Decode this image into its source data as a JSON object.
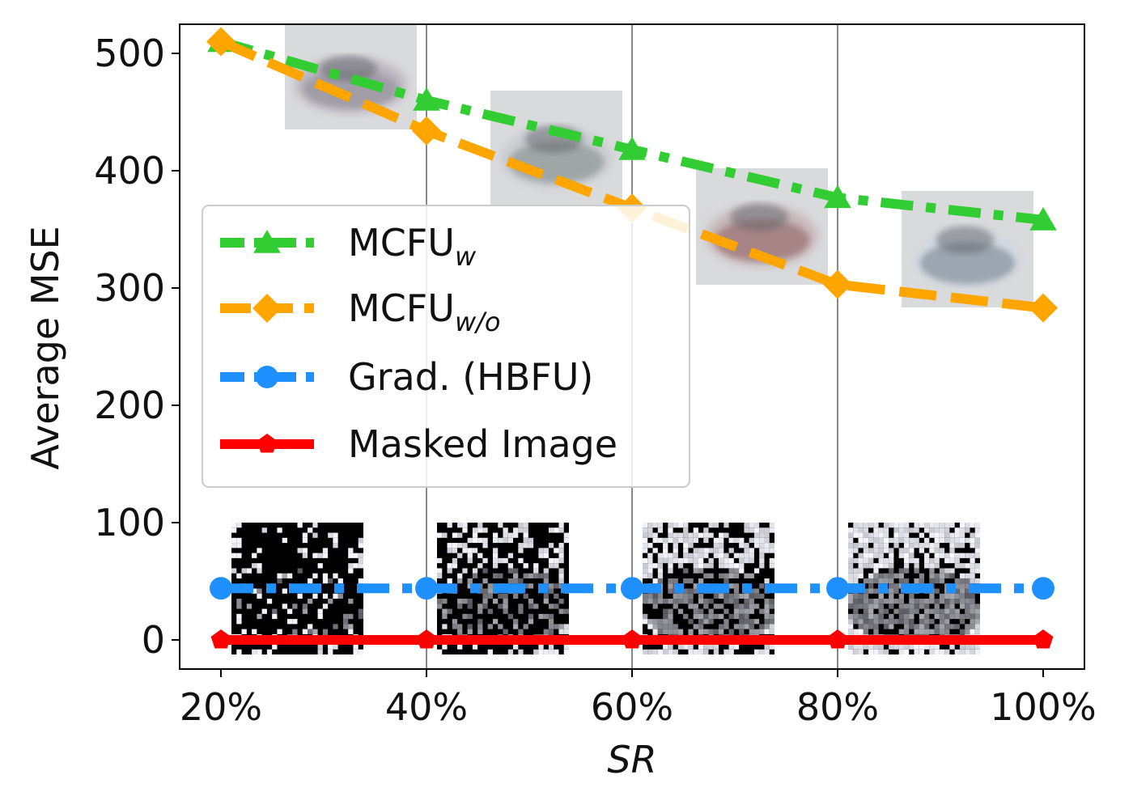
{
  "chart_data": {
    "type": "line",
    "title": "",
    "xlabel": "SR",
    "ylabel": "Average MSE",
    "categories": [
      "20%",
      "40%",
      "60%",
      "80%",
      "100%"
    ],
    "x": [
      20,
      40,
      60,
      80,
      100
    ],
    "ylim": [
      -25,
      525
    ],
    "yticks": [
      0,
      100,
      200,
      300,
      400,
      500
    ],
    "grid": "vertical lines at 40%, 60%, 80%",
    "legend_position": "center-left",
    "series": [
      {
        "name": "MCFU",
        "subscript": "w",
        "color": "#32cd32",
        "marker": "triangle",
        "linestyle": "dash-dot",
        "values": [
          510,
          460,
          418,
          377,
          358
        ]
      },
      {
        "name": "MCFU",
        "subscript": "w/o",
        "color": "#ffa500",
        "marker": "diamond",
        "linestyle": "dashed",
        "values": [
          510,
          434,
          368,
          303,
          283
        ]
      },
      {
        "name": "Grad. (HBFU)",
        "color": "#1e90ff",
        "marker": "circle",
        "linestyle": "dash-dot",
        "values": [
          44,
          44,
          44,
          44,
          44
        ]
      },
      {
        "name": "Masked Image",
        "color": "#ff0000",
        "marker": "pentagon",
        "linestyle": "solid",
        "values": [
          0,
          0,
          0,
          0,
          0
        ]
      }
    ],
    "inset_images": {
      "reconstructions": "blurry car reconstructions",
      "masked": "noisy masked car images"
    }
  }
}
